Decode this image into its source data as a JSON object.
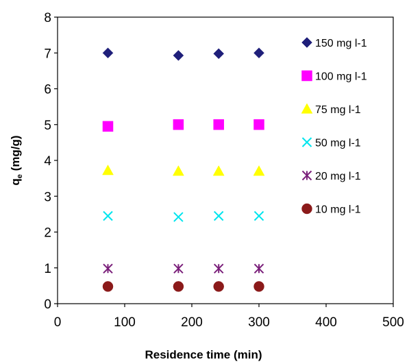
{
  "chart_data": {
    "type": "scatter",
    "title": "",
    "xlabel": "Residence time (min)",
    "ylabel": {
      "main": "q",
      "subscript": "e",
      "rest": " (mg/g)"
    },
    "xlim": [
      0,
      500
    ],
    "ylim": [
      0,
      8
    ],
    "xticks": [
      "0",
      "100",
      "200",
      "300",
      "400",
      "500"
    ],
    "yticks": [
      "0",
      "1",
      "2",
      "3",
      "4",
      "5",
      "6",
      "7",
      "8"
    ],
    "grid": false,
    "legend_position": "right",
    "series": [
      {
        "name": "150 mg l-1",
        "marker": "diamond",
        "color": "#1f1f7a",
        "x": [
          75,
          180,
          240,
          300
        ],
        "y": [
          7.0,
          6.93,
          6.98,
          7.0
        ]
      },
      {
        "name": "100 mg l-1",
        "marker": "square",
        "color": "#ff00ff",
        "x": [
          75,
          180,
          240,
          300
        ],
        "y": [
          4.95,
          5.0,
          5.0,
          5.0
        ]
      },
      {
        "name": "75 mg l-1",
        "marker": "triangle",
        "color": "#ffff00",
        "x": [
          75,
          180,
          240,
          300
        ],
        "y": [
          3.72,
          3.7,
          3.7,
          3.7
        ]
      },
      {
        "name": "50 mg l-1",
        "marker": "x",
        "color": "#00e5ee",
        "x": [
          75,
          180,
          240,
          300
        ],
        "y": [
          2.45,
          2.42,
          2.45,
          2.45
        ]
      },
      {
        "name": "20 mg l-1",
        "marker": "star",
        "color": "#7a1f7a",
        "x": [
          75,
          180,
          240,
          300
        ],
        "y": [
          0.98,
          0.98,
          0.98,
          0.98
        ]
      },
      {
        "name": "10 mg l-1",
        "marker": "circle",
        "color": "#8b1a1a",
        "x": [
          75,
          180,
          240,
          300
        ],
        "y": [
          0.48,
          0.48,
          0.48,
          0.48
        ]
      }
    ]
  }
}
